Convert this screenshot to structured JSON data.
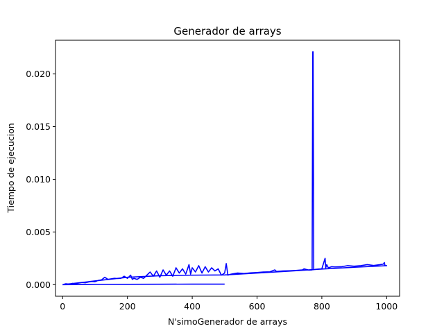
{
  "chart_data": {
    "type": "line",
    "title": "Generador de arrays",
    "xlabel": "N'simoGenerador de arrays",
    "ylabel": "Tiempo de ejecucion",
    "xlim": [
      -22,
      1040
    ],
    "ylim": [
      -0.0011,
      0.0232
    ],
    "xticks": [
      0,
      200,
      400,
      600,
      800,
      1000
    ],
    "xtick_labels": [
      "0",
      "200",
      "400",
      "600",
      "800",
      "1000"
    ],
    "yticks": [
      0.0,
      0.005,
      0.01,
      0.015,
      0.02
    ],
    "ytick_labels": [
      "0.000",
      "0.005",
      "0.010",
      "0.015",
      "0.020"
    ],
    "grid": false,
    "series_color": "#0000ff",
    "series": [
      {
        "values_note": "",
        "x": [
          0,
          10,
          20,
          30,
          40,
          50,
          60,
          70,
          80,
          90,
          100,
          110,
          120,
          130,
          140,
          150,
          160,
          170,
          180,
          190,
          200,
          210,
          215,
          220,
          230,
          240,
          250,
          260,
          270,
          280,
          290,
          300,
          310,
          320,
          330,
          340,
          350,
          360,
          370,
          380,
          390,
          395,
          400,
          410,
          420,
          430,
          440,
          450,
          460,
          470,
          480,
          490,
          500,
          505,
          510,
          520,
          540,
          560,
          580,
          600,
          620,
          640,
          655,
          660,
          680,
          700,
          720,
          740,
          745,
          760,
          770,
          772,
          773,
          775,
          780,
          790,
          800,
          810,
          812,
          815,
          820,
          830,
          840,
          860,
          880,
          900,
          920,
          940,
          960,
          980,
          990,
          993,
          995,
          1000,
          1000,
          900,
          800,
          700,
          600,
          500,
          400,
          300,
          200,
          100,
          0
        ],
        "y": [
          0.0,
          8e-05,
          5e-05,
          0.00012,
          0.0001,
          0.00015,
          0.0002,
          0.00018,
          0.00025,
          0.0003,
          0.00028,
          0.0004,
          0.00045,
          0.0007,
          0.0005,
          0.00055,
          0.0006,
          0.00058,
          0.0006,
          0.0008,
          0.0006,
          0.0009,
          0.0005,
          0.0006,
          0.0005,
          0.0007,
          0.0006,
          0.0009,
          0.0012,
          0.0008,
          0.0013,
          0.0007,
          0.0014,
          0.0009,
          0.0013,
          0.0008,
          0.0016,
          0.0011,
          0.0015,
          0.001,
          0.0019,
          0.001,
          0.0016,
          0.0012,
          0.0018,
          0.0011,
          0.0017,
          0.0012,
          0.0016,
          0.0013,
          0.0015,
          0.0009,
          0.0011,
          0.002,
          0.0009,
          0.001,
          0.0011,
          0.00105,
          0.00112,
          0.00115,
          0.0012,
          0.00122,
          0.0014,
          0.00125,
          0.0013,
          0.00132,
          0.00135,
          0.0014,
          0.0015,
          0.00138,
          0.0014,
          0.0221,
          0.0221,
          0.00142,
          0.00145,
          0.00148,
          0.0015,
          0.0025,
          0.0016,
          0.0019,
          0.0016,
          0.0017,
          0.00168,
          0.0017,
          0.0018,
          0.00175,
          0.0018,
          0.0019,
          0.00182,
          0.0019,
          0.00195,
          0.0021,
          0.0018,
          0.0018,
          0.0018,
          0.00165,
          0.00148,
          0.00128,
          0.0011,
          0.00092,
          0.0009,
          0.00085,
          0.0007,
          0.00035,
          0.0
        ]
      },
      {
        "x": [
          0,
          100,
          200,
          300,
          400,
          500
        ],
        "y": [
          0.0,
          2e-05,
          3e-05,
          4e-05,
          5e-05,
          5e-05
        ]
      }
    ]
  }
}
